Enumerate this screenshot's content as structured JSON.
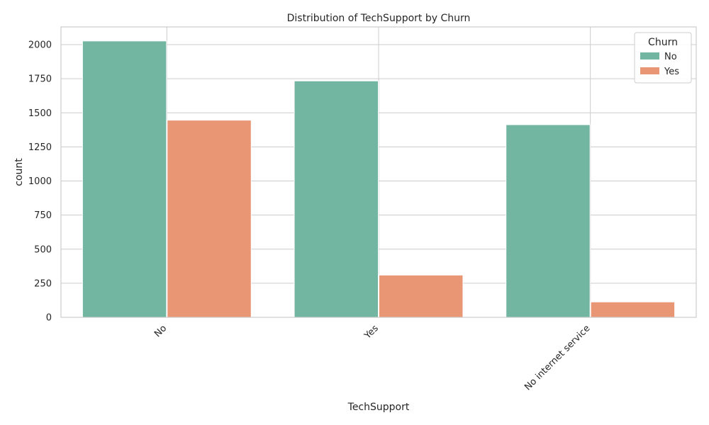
{
  "chart_data": {
    "type": "bar",
    "title": "Distribution of TechSupport by Churn",
    "xlabel": "TechSupport",
    "ylabel": "count",
    "categories": [
      "No",
      "Yes",
      "No internet service"
    ],
    "series": [
      {
        "name": "No",
        "color": "#72b6a1",
        "values": [
          2027,
          1734,
          1413
        ]
      },
      {
        "name": "Yes",
        "color": "#e99675",
        "values": [
          1446,
          310,
          113
        ]
      }
    ],
    "ylim": [
      0,
      2130
    ],
    "yticks": [
      0,
      250,
      500,
      750,
      1000,
      1250,
      1500,
      1750,
      2000
    ],
    "ytick_labels": [
      "0",
      "250",
      "500",
      "750",
      "1000",
      "1250",
      "1500",
      "1750",
      "2000"
    ],
    "grid": true,
    "legend": {
      "title": "Churn",
      "position": "top-right"
    }
  }
}
